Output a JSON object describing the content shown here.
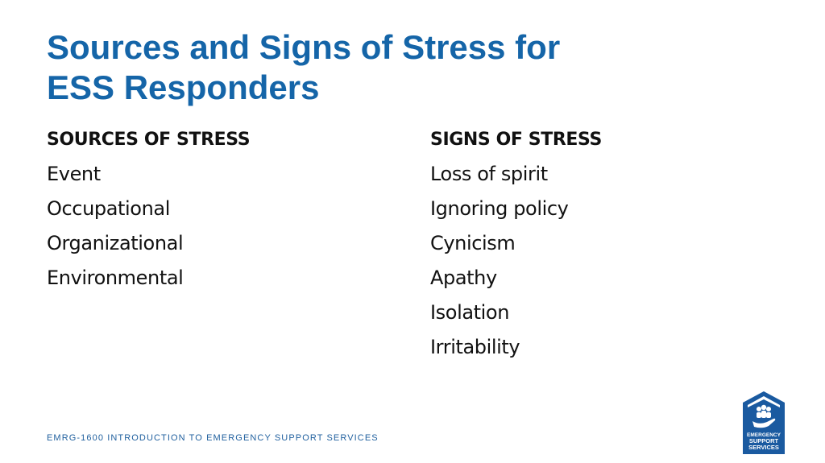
{
  "slide": {
    "title_line1": "Sources and Signs of Stress for",
    "title_line2": "ESS Responders"
  },
  "sources": {
    "heading": "SOURCES OF STRESS",
    "items": [
      "Event",
      "Occupational",
      "Organizational",
      "Environmental"
    ]
  },
  "signs": {
    "heading": "SIGNS OF STRESS",
    "items": [
      "Loss of spirit",
      "Ignoring policy",
      "Cynicism",
      "Apathy",
      "Isolation",
      "Irritability"
    ]
  },
  "footer": {
    "course": "EMRG-1600 INTRODUCTION TO EMERGENCY SUPPORT SERVICES"
  },
  "logo": {
    "line1": "EMERGENCY",
    "line2": "SUPPORT",
    "line3": "SERVICES",
    "icon": "home-people-hand-icon"
  },
  "colors": {
    "title": "#1565a8",
    "footer": "#1f5f9e",
    "logo_bg": "#1a5aa0"
  }
}
